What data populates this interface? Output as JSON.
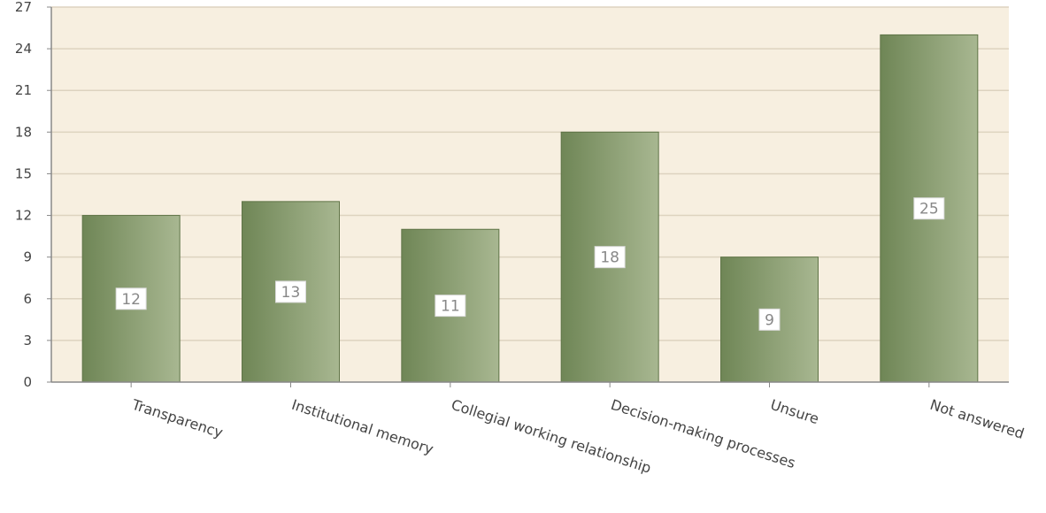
{
  "chart_data": {
    "type": "bar",
    "title": "",
    "xlabel": "",
    "ylabel": "",
    "categories": [
      "Transparency",
      "Institutional memory",
      "Collegial working relationship",
      "Decision-making processes",
      "Unsure",
      "Not answered"
    ],
    "values": [
      12,
      13,
      11,
      18,
      9,
      25
    ],
    "ylim": [
      0,
      27
    ],
    "yticks": [
      0,
      3,
      6,
      9,
      12,
      15,
      18,
      21,
      24,
      27
    ],
    "grid": true,
    "legend": "none",
    "show_data_labels": true
  },
  "colors": {
    "plot_background": "#f7efe0",
    "grid": "#ddd3bf",
    "axis": "#888888",
    "bar_dark": "#6f8656",
    "bar_light": "#a8b791",
    "bar_border": "#5f7447",
    "label_box": "#ffffff",
    "label_text": "#888888"
  }
}
